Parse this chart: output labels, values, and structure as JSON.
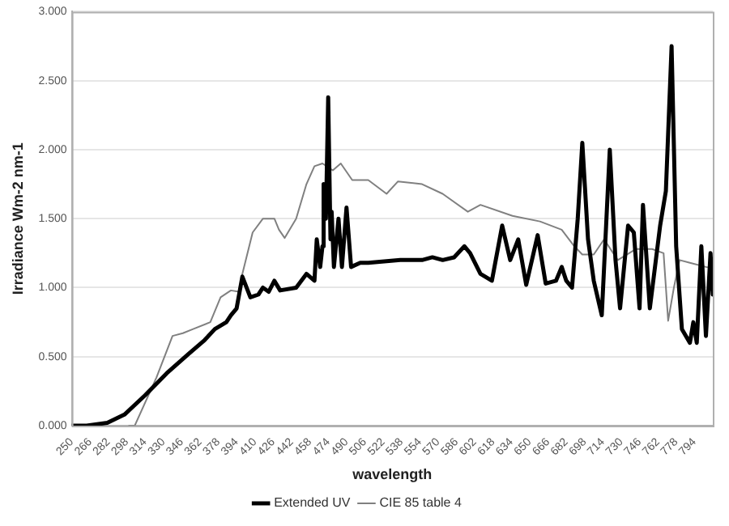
{
  "chart_data": {
    "type": "line",
    "xlabel": "wavelength",
    "ylabel": "Irradiance Wm-2 nm-1",
    "xlim": [
      250,
      810
    ],
    "xticks": [
      250,
      266,
      282,
      298,
      314,
      330,
      346,
      362,
      378,
      394,
      410,
      426,
      442,
      458,
      474,
      490,
      506,
      522,
      538,
      554,
      570,
      586,
      602,
      618,
      634,
      650,
      666,
      682,
      698,
      714,
      730,
      746,
      762,
      778,
      794
    ],
    "ylim": [
      0,
      3
    ],
    "yticks": [
      {
        "value": 0,
        "label": "0.000"
      },
      {
        "value": 0.5,
        "label": "0.500"
      },
      {
        "value": 1,
        "label": "1.000"
      },
      {
        "value": 1.5,
        "label": "1.500"
      },
      {
        "value": 2,
        "label": "2.000"
      },
      {
        "value": 2.5,
        "label": "2.500"
      },
      {
        "value": 3,
        "label": "3.000"
      }
    ],
    "grid": "y",
    "legend": "bottom",
    "marker": "none",
    "line_style": "solid",
    "series": [
      {
        "name": "Extended UV",
        "color": "#000000",
        "x": [
          250,
          263,
          281,
          296,
          314,
          333,
          352,
          366,
          375,
          385,
          389,
          394,
          399,
          406,
          413,
          417,
          422,
          427,
          432,
          446,
          455,
          462,
          464,
          467,
          469,
          470,
          472,
          474,
          476,
          477,
          479,
          483,
          486,
          490,
          494,
          502,
          509,
          537,
          556,
          565,
          574,
          584,
          593,
          598,
          607,
          617,
          626,
          633,
          640,
          647,
          657,
          664,
          673,
          678,
          682,
          687,
          692,
          696,
          701,
          706,
          713,
          720,
          725,
          729,
          736,
          741,
          746,
          749,
          755,
          764,
          769,
          774,
          778,
          783,
          790,
          793,
          796,
          800,
          804,
          808,
          810
        ],
        "values": [
          0,
          0,
          0.02,
          0.08,
          0.22,
          0.38,
          0.52,
          0.62,
          0.7,
          0.75,
          0.8,
          0.85,
          1.08,
          0.93,
          0.95,
          1.0,
          0.97,
          1.05,
          0.98,
          1.0,
          1.1,
          1.05,
          1.35,
          1.15,
          1.3,
          1.75,
          1.5,
          2.38,
          1.35,
          1.55,
          1.15,
          1.5,
          1.15,
          1.58,
          1.15,
          1.18,
          1.18,
          1.2,
          1.2,
          1.22,
          1.2,
          1.22,
          1.3,
          1.25,
          1.1,
          1.05,
          1.45,
          1.2,
          1.35,
          1.02,
          1.38,
          1.03,
          1.05,
          1.15,
          1.05,
          1.0,
          1.5,
          2.05,
          1.35,
          1.05,
          0.8,
          2.0,
          1.2,
          0.85,
          1.45,
          1.4,
          0.85,
          1.6,
          0.85,
          1.45,
          1.7,
          2.75,
          1.3,
          0.7,
          0.6,
          0.75,
          0.6,
          1.3,
          0.65,
          1.25,
          0.95
        ]
      },
      {
        "name": "CIE 85 table 4",
        "color": "#808080",
        "x": [
          300,
          305,
          324,
          338,
          347,
          356,
          371,
          380,
          389,
          396,
          399,
          408,
          417,
          427,
          431,
          436,
          446,
          455,
          462,
          469,
          478,
          485,
          495,
          509,
          525,
          535,
          556,
          574,
          596,
          607,
          635,
          659,
          678,
          689,
          696,
          706,
          715,
          727,
          743,
          757,
          767,
          771,
          776,
          781,
          790,
          804,
          810
        ],
        "values": [
          0,
          0,
          0.35,
          0.65,
          0.67,
          0.7,
          0.75,
          0.93,
          0.98,
          0.97,
          1.1,
          1.4,
          1.5,
          1.5,
          1.42,
          1.36,
          1.5,
          1.75,
          1.88,
          1.9,
          1.85,
          1.9,
          1.78,
          1.78,
          1.68,
          1.77,
          1.75,
          1.68,
          1.55,
          1.6,
          1.52,
          1.48,
          1.42,
          1.3,
          1.24,
          1.24,
          1.35,
          1.2,
          1.28,
          1.28,
          1.25,
          0.76,
          1.0,
          1.2,
          1.18,
          1.15,
          1.14
        ]
      }
    ]
  }
}
